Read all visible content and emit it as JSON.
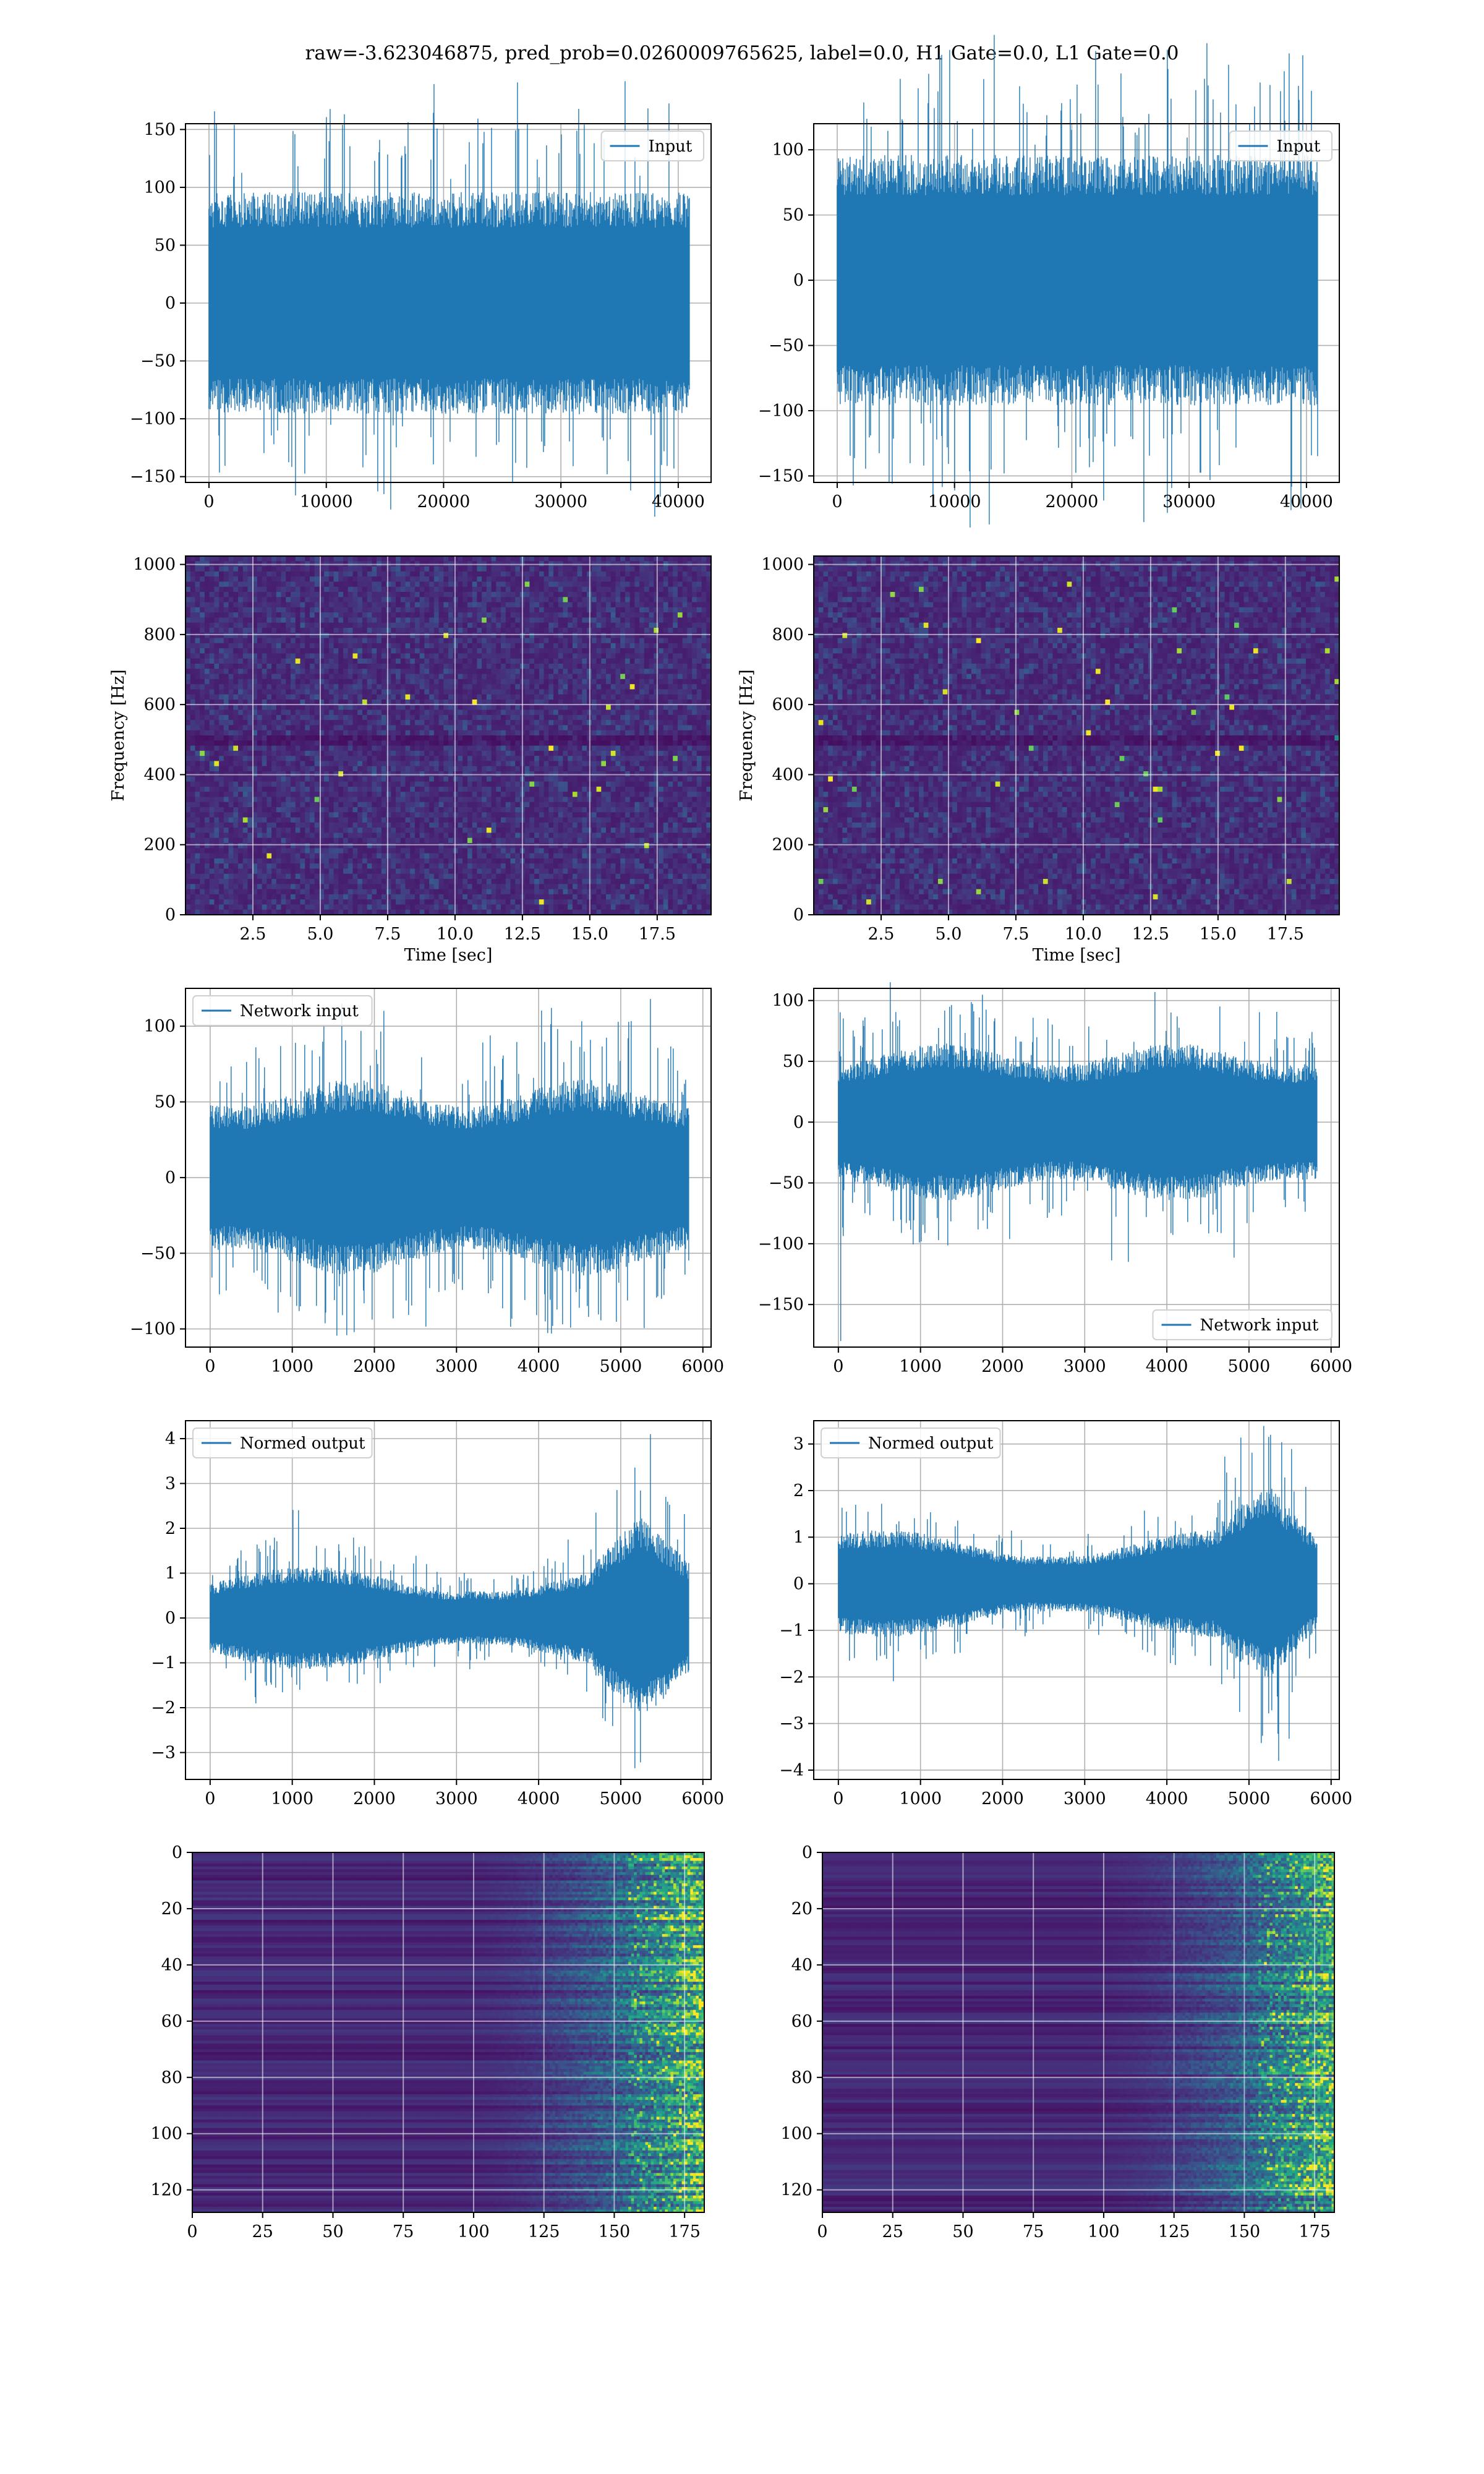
{
  "figure": {
    "title": "raw=-3.623046875, pred_prob=0.0260009765625, label=0.0, H1 Gate=0.0, L1 Gate=0.0",
    "line_color": "#1f77b4",
    "colormap": "viridis"
  },
  "chart_data": [
    {
      "id": "input-h1",
      "type": "line",
      "legend": "Input",
      "legend_loc": "upper-right",
      "xlim": [
        -2000,
        42800
      ],
      "ylim": [
        -155,
        155
      ],
      "xticks": [
        0,
        10000,
        20000,
        30000,
        40000
      ],
      "yticks": [
        -150,
        -100,
        -50,
        0,
        50,
        100,
        150
      ],
      "n": 40960,
      "envelope": 62,
      "spike": 140,
      "grid": true
    },
    {
      "id": "input-l1",
      "type": "line",
      "legend": "Input",
      "legend_loc": "upper-right",
      "xlim": [
        -2000,
        42800
      ],
      "ylim": [
        -155,
        120
      ],
      "xticks": [
        0,
        10000,
        20000,
        30000,
        40000
      ],
      "yticks": [
        -150,
        -100,
        -50,
        0,
        50,
        100
      ],
      "n": 40960,
      "envelope": 62,
      "spike": 122,
      "grid": true
    },
    {
      "id": "spectrogram-h1",
      "type": "heatmap",
      "colormap": "viridis",
      "xlabel": "Time [sec]",
      "ylabel": "Frequency [Hz]",
      "xlim": [
        0,
        19.5
      ],
      "ylim": [
        0,
        1024
      ],
      "xticks": [
        2.5,
        5.0,
        7.5,
        10.0,
        12.5,
        15.0,
        17.5
      ],
      "yticks": [
        0,
        200,
        400,
        600,
        800,
        1000
      ],
      "grid": true
    },
    {
      "id": "spectrogram-l1",
      "type": "heatmap",
      "colormap": "viridis",
      "xlabel": "Time [sec]",
      "ylabel": "Frequency [Hz]",
      "xlim": [
        0,
        19.5
      ],
      "ylim": [
        0,
        1024
      ],
      "xticks": [
        2.5,
        5.0,
        7.5,
        10.0,
        12.5,
        15.0,
        17.5
      ],
      "yticks": [
        0,
        200,
        400,
        600,
        800,
        1000
      ],
      "grid": true
    },
    {
      "id": "network-input-h1",
      "type": "line",
      "legend": "Network input",
      "legend_loc": "upper-left",
      "xlim": [
        -300,
        6100
      ],
      "ylim": [
        -112,
        125
      ],
      "xticks": [
        0,
        1000,
        2000,
        3000,
        4000,
        5000,
        6000
      ],
      "yticks": [
        -100,
        -50,
        0,
        50,
        100
      ],
      "n": 5830,
      "envelope": 38,
      "spike": 118,
      "grid": true
    },
    {
      "id": "network-input-l1",
      "type": "line",
      "legend": "Network input",
      "legend_loc": "lower-right",
      "xlim": [
        -300,
        6100
      ],
      "ylim": [
        -185,
        110
      ],
      "xticks": [
        0,
        1000,
        2000,
        3000,
        4000,
        5000,
        6000
      ],
      "yticks": [
        -150,
        -100,
        -50,
        0,
        50,
        100
      ],
      "n": 5830,
      "envelope": 38,
      "spike": -180,
      "grid": true
    },
    {
      "id": "normed-output-h1",
      "type": "line",
      "legend": "Normed output",
      "legend_loc": "upper-left",
      "xlim": [
        -300,
        6100
      ],
      "ylim": [
        -3.6,
        4.4
      ],
      "xticks": [
        0,
        1000,
        2000,
        3000,
        4000,
        5000,
        6000
      ],
      "yticks": [
        -3,
        -2,
        -1,
        0,
        1,
        2,
        3,
        4
      ],
      "n": 5830,
      "envelope": 0.55,
      "spike": 4.1,
      "grid": true
    },
    {
      "id": "normed-output-l1",
      "type": "line",
      "legend": "Normed output",
      "legend_loc": "upper-left",
      "xlim": [
        -300,
        6100
      ],
      "ylim": [
        -4.2,
        3.5
      ],
      "xticks": [
        0,
        1000,
        2000,
        3000,
        4000,
        5000,
        6000
      ],
      "yticks": [
        -4,
        -3,
        -2,
        -1,
        0,
        1,
        2,
        3
      ],
      "n": 5830,
      "envelope": 0.55,
      "spike": -3.8,
      "grid": true
    },
    {
      "id": "qtransform-h1",
      "type": "heatmap",
      "colormap": "viridis",
      "xlim": [
        0,
        182
      ],
      "ylim": [
        128,
        0
      ],
      "xticks": [
        0,
        25,
        50,
        75,
        100,
        125,
        150,
        175
      ],
      "yticks": [
        0,
        20,
        40,
        60,
        80,
        100,
        120
      ],
      "grid": true
    },
    {
      "id": "qtransform-l1",
      "type": "heatmap",
      "colormap": "viridis",
      "xlim": [
        0,
        182
      ],
      "ylim": [
        128,
        0
      ],
      "xticks": [
        0,
        25,
        50,
        75,
        100,
        125,
        150,
        175
      ],
      "yticks": [
        0,
        20,
        40,
        60,
        80,
        100,
        120
      ],
      "grid": true
    }
  ]
}
